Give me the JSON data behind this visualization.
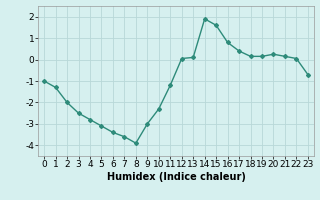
{
  "xlabel": "Humidex (Indice chaleur)",
  "x_values": [
    0,
    1,
    2,
    3,
    4,
    5,
    6,
    7,
    8,
    9,
    10,
    11,
    12,
    13,
    14,
    15,
    16,
    17,
    18,
    19,
    20,
    21,
    22,
    23
  ],
  "y_values": [
    -1.0,
    -1.3,
    -2.0,
    -2.5,
    -2.8,
    -3.1,
    -3.4,
    -3.6,
    -3.9,
    -3.0,
    -2.3,
    -1.2,
    0.05,
    0.1,
    1.9,
    1.6,
    0.8,
    0.4,
    0.15,
    0.15,
    0.25,
    0.15,
    0.05,
    -0.7
  ],
  "line_color": "#2e8b7a",
  "marker": "D",
  "marker_size": 2.0,
  "bg_color": "#d6f0ef",
  "grid_color": "#b8d8d8",
  "ylim": [
    -4.5,
    2.5
  ],
  "yticks": [
    -4,
    -3,
    -2,
    -1,
    0,
    1,
    2
  ],
  "xticks": [
    0,
    1,
    2,
    3,
    4,
    5,
    6,
    7,
    8,
    9,
    10,
    11,
    12,
    13,
    14,
    15,
    16,
    17,
    18,
    19,
    20,
    21,
    22,
    23
  ],
  "xlabel_fontsize": 7,
  "tick_fontsize": 6.5,
  "line_width": 1.0,
  "spine_color": "#999999"
}
